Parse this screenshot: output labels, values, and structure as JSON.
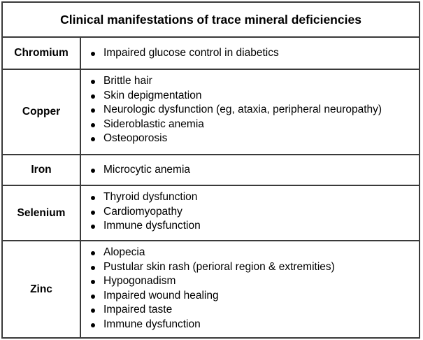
{
  "table": {
    "title": "Clinical manifestations of trace mineral deficiencies",
    "rows": [
      {
        "mineral": "Chromium",
        "manifestations": [
          "Impaired glucose control in diabetics"
        ]
      },
      {
        "mineral": "Copper",
        "manifestations": [
          "Brittle hair",
          "Skin depigmentation",
          "Neurologic dysfunction (eg, ataxia, peripheral neuropathy)",
          "Sideroblastic anemia",
          "Osteoporosis"
        ]
      },
      {
        "mineral": "Iron",
        "manifestations": [
          "Microcytic anemia"
        ]
      },
      {
        "mineral": "Selenium",
        "manifestations": [
          "Thyroid dysfunction",
          "Cardiomyopathy",
          "Immune dysfunction"
        ]
      },
      {
        "mineral": "Zinc",
        "manifestations": [
          "Alopecia",
          "Pustular skin rash (perioral region & extremities)",
          "Hypogonadism",
          "Impaired wound healing",
          "Impaired taste",
          "Immune dysfunction"
        ]
      }
    ]
  }
}
